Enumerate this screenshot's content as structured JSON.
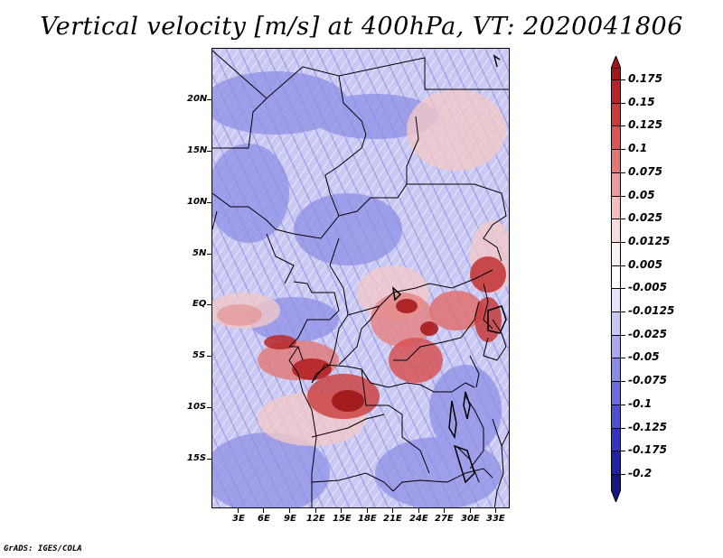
{
  "title": "Vertical velocity [m/s] at 400hPa, VT: 2020041806",
  "credit": "GrADS: IGES/COLA",
  "map": {
    "lat_labels": [
      "20N",
      "15N",
      "10N",
      "5N",
      "EQ",
      "5S",
      "10S",
      "15S"
    ],
    "lon_labels": [
      "3E",
      "6E",
      "9E",
      "12E",
      "15E",
      "18E",
      "21E",
      "24E",
      "27E",
      "30E",
      "33E"
    ],
    "lon_range": [
      0.5,
      35
    ],
    "lat_range": [
      -20,
      25
    ],
    "field_colors": {
      "background": "#c9c9f3",
      "ascent_strong": "#b11c1c",
      "ascent": "#e87c7c",
      "weak": "#f4dede",
      "descent": "#9c9ce8"
    }
  },
  "colorbar": {
    "labels": [
      "0.175",
      "0.15",
      "0.125",
      "0.1",
      "0.075",
      "0.05",
      "0.025",
      "0.0125",
      "0.005",
      "-0.005",
      "-0.0125",
      "-0.025",
      "-0.05",
      "-0.075",
      "-0.1",
      "-0.125",
      "-0.175",
      "-0.2"
    ],
    "colors": [
      "#a3161a",
      "#b92227",
      "#cd3a3a",
      "#dc5454",
      "#e67676",
      "#ee9a9a",
      "#f5bdbd",
      "#fadcdc",
      "#fdf0f0",
      "#ffffff",
      "#e4e4fb",
      "#c8c8f6",
      "#a9a9ef",
      "#8a8ae8",
      "#6b6be0",
      "#4d4dd6",
      "#3232c4",
      "#2020a8",
      "#151583"
    ]
  }
}
